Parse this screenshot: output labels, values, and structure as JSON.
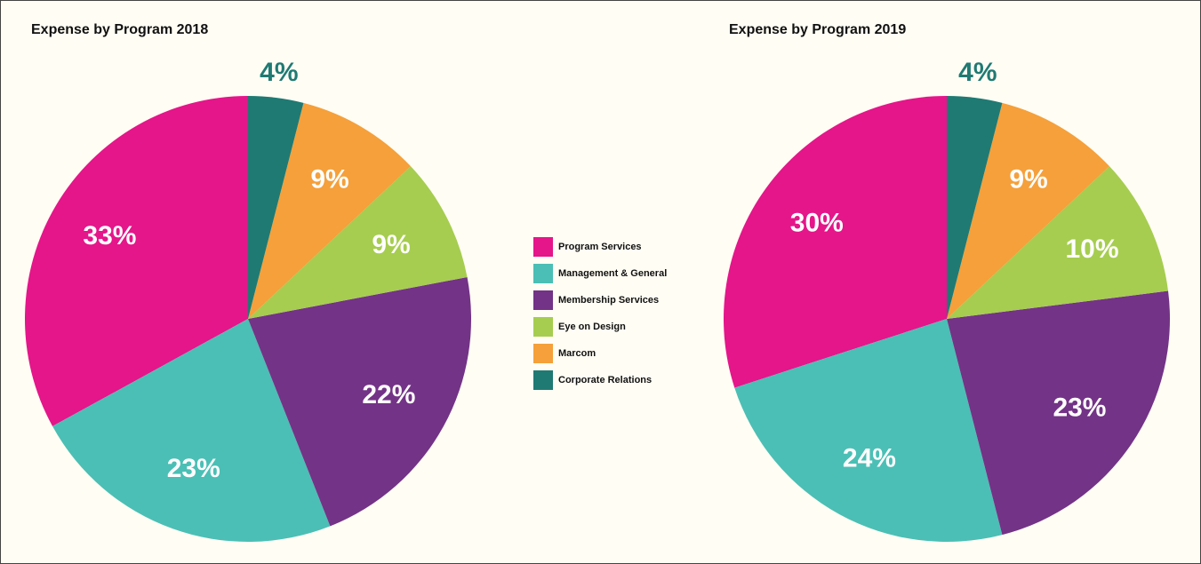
{
  "chart_data": [
    {
      "type": "pie",
      "title": "Expense by Program 2018",
      "categories": [
        "Program Services",
        "Management & General",
        "Membership Services",
        "Eye on Design",
        "Marcom",
        "Corporate Relations"
      ],
      "values": [
        33,
        23,
        22,
        9,
        9,
        4
      ],
      "value_labels": [
        "33%",
        "23%",
        "22%",
        "9%",
        "9%",
        "4%"
      ],
      "colors": [
        "#e5158a",
        "#4bbfb5",
        "#733386",
        "#a6cd4f",
        "#f5a03a",
        "#1f7a73"
      ]
    },
    {
      "type": "pie",
      "title": "Expense by Program 2019",
      "categories": [
        "Program Services",
        "Management & General",
        "Membership Services",
        "Eye on Design",
        "Marcom",
        "Corporate Relations"
      ],
      "values": [
        30,
        24,
        23,
        10,
        9,
        4
      ],
      "value_labels": [
        "30%",
        "24%",
        "23%",
        "10%",
        "9%",
        "4%"
      ],
      "colors": [
        "#e5158a",
        "#4bbfb5",
        "#733386",
        "#a6cd4f",
        "#f5a03a",
        "#1f7a73"
      ]
    }
  ]
}
